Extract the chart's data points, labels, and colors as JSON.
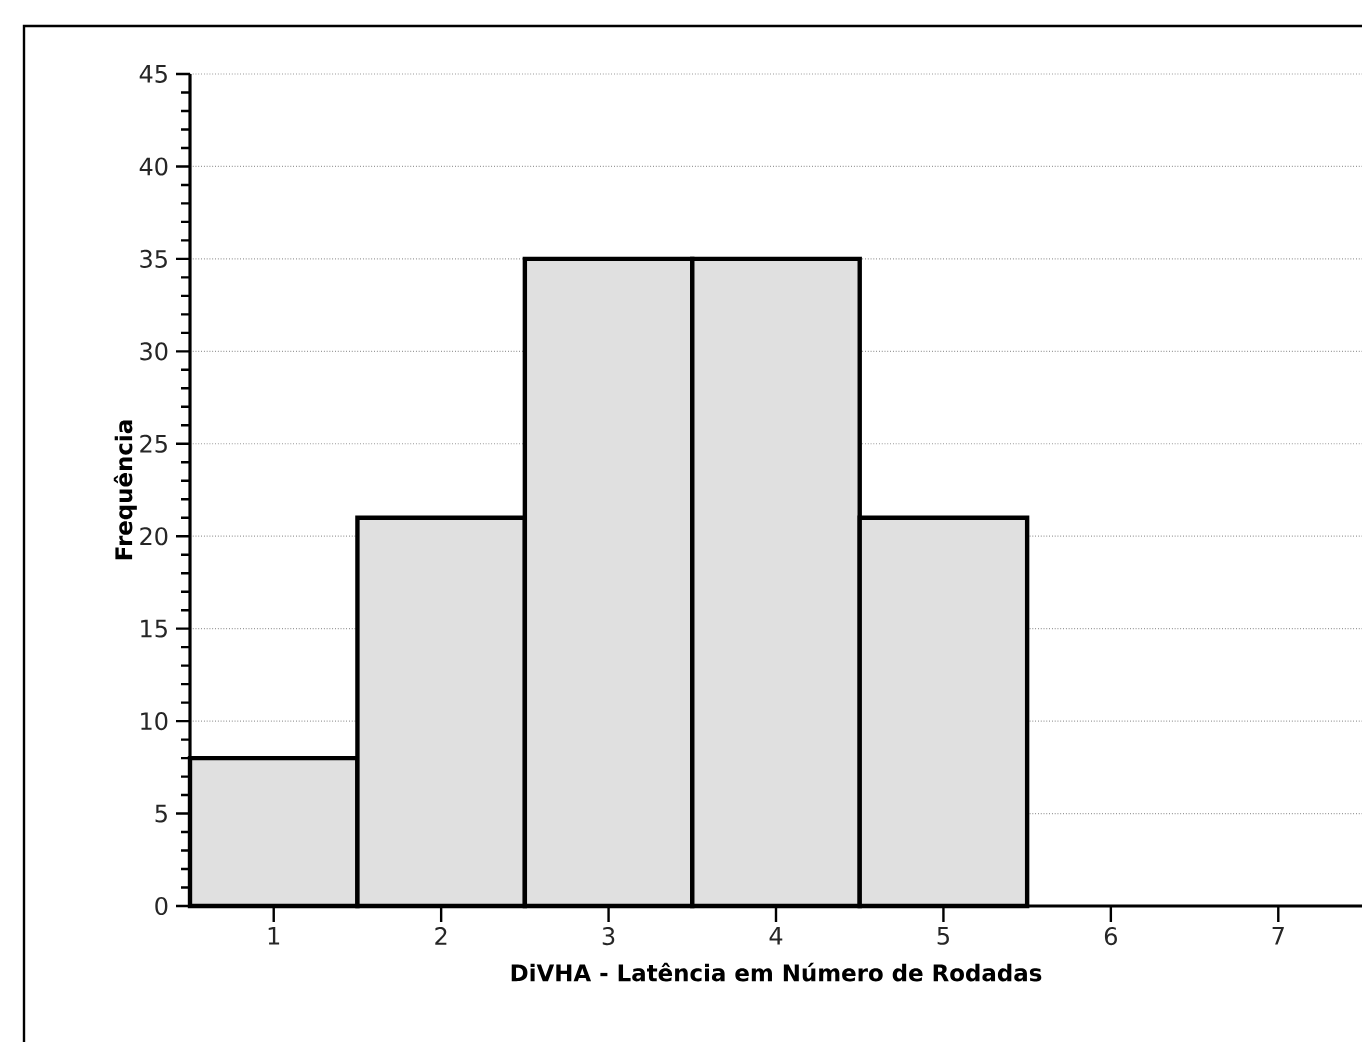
{
  "chart_data": {
    "type": "histogram",
    "xlabel": "DiVHA - Latência em Número de Rodadas",
    "ylabel": "Frequência",
    "bins": [
      0.5,
      1.5,
      2.5,
      3.5,
      4.5,
      5.5
    ],
    "values": [
      8,
      21,
      35,
      35,
      21
    ],
    "color": "#e0e0e0",
    "xlim": [
      0.5,
      7.5
    ],
    "xticks": [
      1,
      2,
      3,
      4,
      5,
      6,
      7
    ],
    "ylim": [
      0,
      45
    ],
    "yticks": [
      0,
      5,
      10,
      15,
      20,
      25,
      30,
      35,
      40,
      45
    ],
    "grid": "y"
  }
}
